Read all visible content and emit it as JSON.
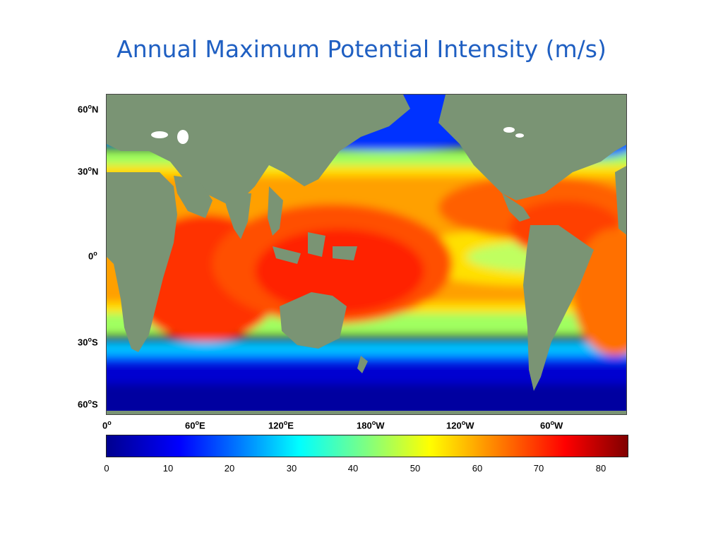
{
  "title": "Annual Maximum Potential Intensity (m/s)",
  "lat_labels": [
    {
      "deg": "60",
      "hem": "N"
    },
    {
      "deg": "30",
      "hem": "N"
    },
    {
      "deg": "0",
      "hem": ""
    },
    {
      "deg": "30",
      "hem": "S"
    },
    {
      "deg": "60",
      "hem": "S"
    }
  ],
  "lon_labels": [
    {
      "deg": "0",
      "hem": ""
    },
    {
      "deg": "60",
      "hem": "E"
    },
    {
      "deg": "120",
      "hem": "E"
    },
    {
      "deg": "180",
      "hem": "W"
    },
    {
      "deg": "120",
      "hem": "W"
    },
    {
      "deg": "60",
      "hem": "W"
    }
  ],
  "colorbar": {
    "ticks": [
      "0",
      "10",
      "20",
      "30",
      "40",
      "50",
      "60",
      "70",
      "80"
    ],
    "range": [
      0,
      84
    ],
    "colors": [
      "#00008f",
      "#0000ff",
      "#0080ff",
      "#00ffff",
      "#80ff80",
      "#ffff00",
      "#ff8000",
      "#ff0000",
      "#800000"
    ]
  },
  "colors": {
    "land": "#7a9474",
    "title": "#1f5fc2"
  }
}
